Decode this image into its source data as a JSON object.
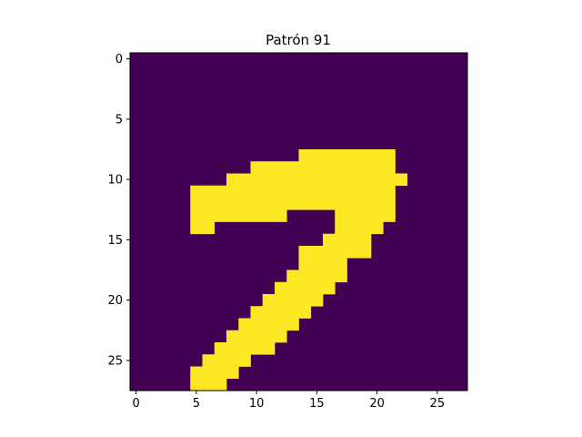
{
  "chart_data": {
    "type": "heatmap",
    "title": "Patrón 91",
    "xlabel": "",
    "ylabel": "",
    "xlim": [
      -0.5,
      27.5
    ],
    "ylim": [
      27.5,
      -0.5
    ],
    "x_ticks": [
      0,
      5,
      10,
      15,
      20,
      25
    ],
    "y_ticks": [
      0,
      5,
      10,
      15,
      20,
      25
    ],
    "x_tick_labels": [
      "0",
      "5",
      "10",
      "15",
      "20",
      "25"
    ],
    "y_tick_labels": [
      "0",
      "5",
      "10",
      "15",
      "20",
      "25"
    ],
    "grid": false,
    "colormap": "viridis",
    "background_color": "#440154",
    "foreground_color": "#fde725",
    "rows": 28,
    "cols": 28,
    "on_spans": [
      [
        8,
        14,
        21
      ],
      [
        9,
        10,
        21
      ],
      [
        10,
        8,
        22
      ],
      [
        11,
        5,
        21
      ],
      [
        12,
        5,
        21
      ],
      [
        13,
        5,
        12
      ],
      [
        13,
        17,
        21
      ],
      [
        14,
        5,
        6
      ],
      [
        14,
        17,
        20
      ],
      [
        15,
        16,
        19
      ],
      [
        16,
        14,
        19
      ],
      [
        17,
        14,
        17
      ],
      [
        18,
        13,
        17
      ],
      [
        19,
        12,
        16
      ],
      [
        20,
        11,
        15
      ],
      [
        21,
        10,
        14
      ],
      [
        22,
        9,
        13
      ],
      [
        23,
        8,
        12
      ],
      [
        24,
        7,
        11
      ],
      [
        25,
        6,
        9
      ],
      [
        26,
        5,
        8
      ],
      [
        27,
        5,
        7
      ]
    ]
  }
}
